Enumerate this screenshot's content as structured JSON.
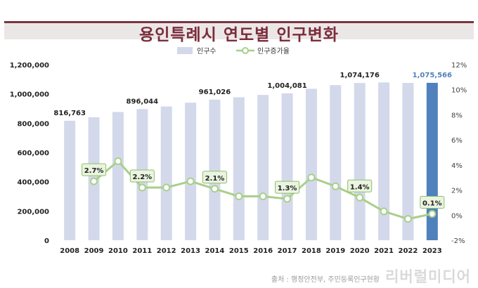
{
  "title": "용인특례시 연도별 인구변화",
  "source": "출처 : 행정안전부, 주민등록인구현황",
  "watermark": "리버럴미디어",
  "chart_data": {
    "type": "bar+line",
    "categories": [
      "2008",
      "2009",
      "2010",
      "2011",
      "2012",
      "2013",
      "2014",
      "2015",
      "2016",
      "2017",
      "2018",
      "2019",
      "2020",
      "2021",
      "2022",
      "2023"
    ],
    "series": [
      {
        "name": "인구수",
        "type": "bar",
        "axis": "left",
        "values": [
          816763,
          840500,
          876500,
          896044,
          914000,
          940000,
          961026,
          977000,
          993000,
          1004081,
          1035000,
          1060000,
          1074176,
          1078000,
          1075000,
          1075566
        ],
        "color": "#d3d9eb",
        "highlight_color": "#4f81bd",
        "highlight_index": 15
      },
      {
        "name": "인구증가율",
        "type": "line",
        "axis": "right",
        "values": [
          null,
          2.7,
          4.3,
          2.2,
          2.2,
          2.7,
          2.1,
          1.5,
          1.5,
          1.3,
          3.0,
          2.3,
          1.4,
          0.3,
          -0.3,
          0.1
        ],
        "color": "#a9cf8a"
      }
    ],
    "bar_labels": [
      {
        "index": 0,
        "text": "816,763"
      },
      {
        "index": 3,
        "text": "896,044"
      },
      {
        "index": 6,
        "text": "961,026"
      },
      {
        "index": 9,
        "text": "1,004,081"
      },
      {
        "index": 12,
        "text": "1,074,176"
      },
      {
        "index": 15,
        "text": "1,075,566"
      }
    ],
    "line_labels": [
      {
        "index": 1,
        "text": "2.7%"
      },
      {
        "index": 3,
        "text": "2.2%"
      },
      {
        "index": 6,
        "text": "2.1%"
      },
      {
        "index": 9,
        "text": "1.3%"
      },
      {
        "index": 12,
        "text": "1.4%"
      },
      {
        "index": 15,
        "text": "0.1%"
      }
    ],
    "y_left": {
      "min": 0,
      "max": 1200000,
      "ticks": [
        "0",
        "200,000",
        "400,000",
        "600,000",
        "800,000",
        "1,000,000",
        "1,200,000"
      ]
    },
    "y_right": {
      "min": -2,
      "max": 12,
      "ticks": [
        "-2%",
        "0%",
        "2%",
        "4%",
        "6%",
        "8%",
        "10%",
        "12%"
      ]
    },
    "legend": {
      "position": "top-center"
    },
    "grid": false
  }
}
